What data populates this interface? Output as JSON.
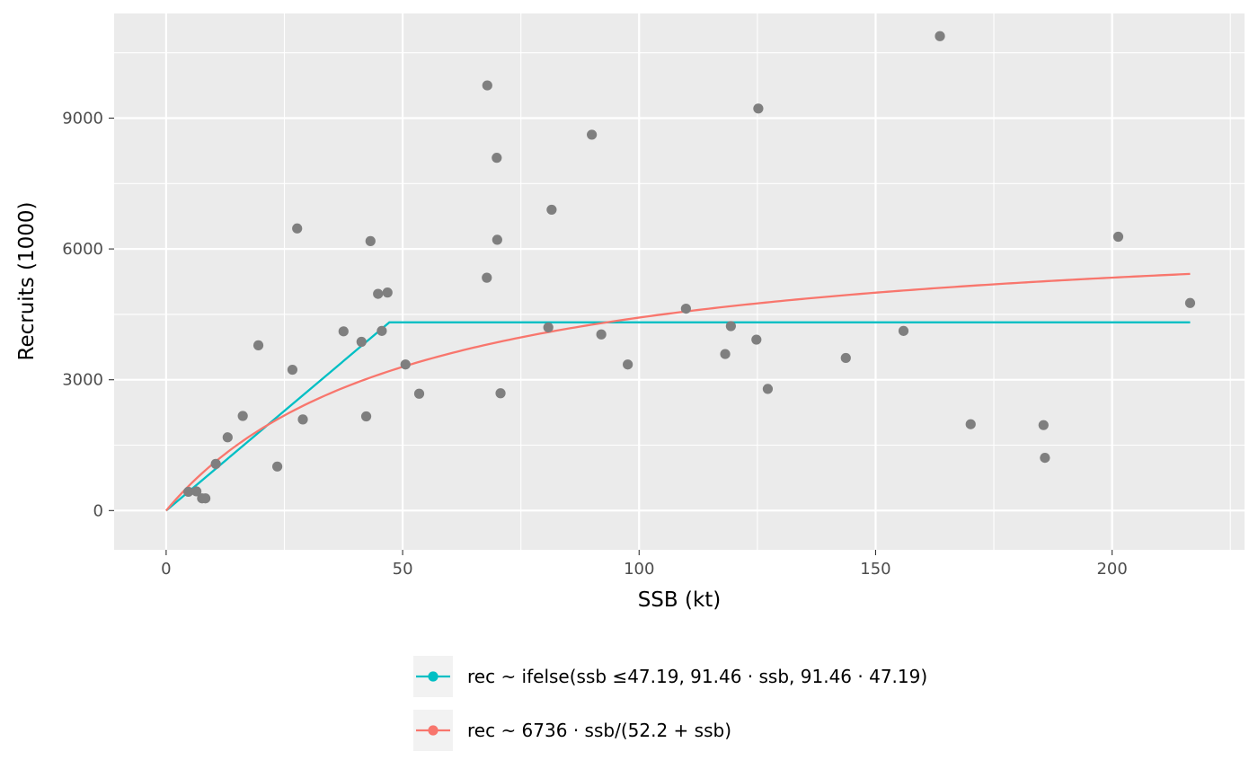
{
  "chart_data": {
    "type": "scatter",
    "xlabel": "SSB (kt)",
    "ylabel": "Recruits (1000)",
    "xlim": [
      -11,
      228
    ],
    "ylim": [
      -900,
      11400
    ],
    "x_ticks": [
      0,
      50,
      100,
      150,
      200
    ],
    "y_ticks": [
      0,
      3000,
      6000,
      9000
    ],
    "grid": true,
    "legend_position": "bottom",
    "colors": {
      "panel": "#ebebeb",
      "grid": "#ffffff",
      "points": "#7f7f7f",
      "segmented": "#00bfc4",
      "bevholt": "#f8766d"
    },
    "points": [
      {
        "x": 4.7,
        "y": 430
      },
      {
        "x": 6.4,
        "y": 440
      },
      {
        "x": 7.6,
        "y": 280
      },
      {
        "x": 8.3,
        "y": 280
      },
      {
        "x": 10.5,
        "y": 1070
      },
      {
        "x": 13.0,
        "y": 1680
      },
      {
        "x": 16.2,
        "y": 2170
      },
      {
        "x": 19.5,
        "y": 3790
      },
      {
        "x": 23.5,
        "y": 1010
      },
      {
        "x": 26.7,
        "y": 3230
      },
      {
        "x": 27.7,
        "y": 6470
      },
      {
        "x": 28.9,
        "y": 2090
      },
      {
        "x": 37.5,
        "y": 4110
      },
      {
        "x": 41.3,
        "y": 3870
      },
      {
        "x": 42.3,
        "y": 2160
      },
      {
        "x": 43.2,
        "y": 6180
      },
      {
        "x": 44.8,
        "y": 4970
      },
      {
        "x": 45.6,
        "y": 4120
      },
      {
        "x": 46.8,
        "y": 5000
      },
      {
        "x": 50.6,
        "y": 3350
      },
      {
        "x": 53.5,
        "y": 2680
      },
      {
        "x": 67.8,
        "y": 5340
      },
      {
        "x": 67.9,
        "y": 9750
      },
      {
        "x": 69.9,
        "y": 8090
      },
      {
        "x": 70.0,
        "y": 6210
      },
      {
        "x": 70.7,
        "y": 2690
      },
      {
        "x": 80.8,
        "y": 4200
      },
      {
        "x": 81.5,
        "y": 6900
      },
      {
        "x": 90.0,
        "y": 8620
      },
      {
        "x": 92.0,
        "y": 4040
      },
      {
        "x": 97.6,
        "y": 3350
      },
      {
        "x": 109.9,
        "y": 4630
      },
      {
        "x": 118.2,
        "y": 3590
      },
      {
        "x": 119.4,
        "y": 4230
      },
      {
        "x": 124.8,
        "y": 3920
      },
      {
        "x": 125.2,
        "y": 9220
      },
      {
        "x": 127.2,
        "y": 2790
      },
      {
        "x": 143.7,
        "y": 3500
      },
      {
        "x": 155.9,
        "y": 4120
      },
      {
        "x": 163.6,
        "y": 10880
      },
      {
        "x": 170.1,
        "y": 1980
      },
      {
        "x": 185.5,
        "y": 1960
      },
      {
        "x": 185.8,
        "y": 1210
      },
      {
        "x": 201.3,
        "y": 6280
      },
      {
        "x": 216.5,
        "y": 4760
      }
    ],
    "series": [
      {
        "name_parts": [
          "rec ~ ifelse(ssb ",
          "≤",
          "47.19, 91.46 ",
          "·",
          " ssb, 91.46 ",
          "·",
          " 47.19)"
        ],
        "color": "#00bfc4",
        "kind": "segmented",
        "breakpoint": 47.19,
        "slope": 91.46,
        "x_range": [
          0,
          216.5
        ]
      },
      {
        "name_parts": [
          "rec ~ 6736 ",
          "·",
          " ssb",
          "/",
          "(52.2 ",
          "+",
          " ssb)"
        ],
        "color": "#f8766d",
        "kind": "bevholt",
        "a": 6736,
        "b": 52.2,
        "x_range": [
          0,
          216.5
        ]
      }
    ]
  }
}
